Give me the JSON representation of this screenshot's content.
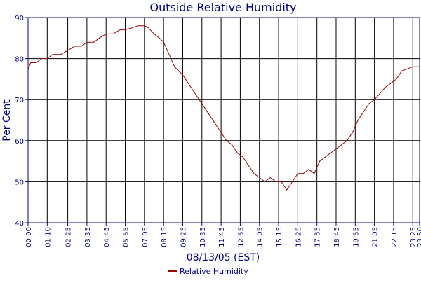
{
  "chart_data": {
    "type": "line",
    "title": "Outside Relative Humidity",
    "x_label": "08/13/05 (EST)",
    "y_label": "Per Cent",
    "x": [
      "00:00",
      "00:10",
      "00:30",
      "00:50",
      "01:10",
      "01:30",
      "02:00",
      "02:25",
      "02:50",
      "03:15",
      "03:35",
      "04:00",
      "04:20",
      "04:45",
      "05:10",
      "05:35",
      "05:55",
      "06:20",
      "06:40",
      "07:05",
      "07:20",
      "07:40",
      "08:00",
      "08:15",
      "08:35",
      "08:55",
      "09:25",
      "09:45",
      "10:05",
      "10:35",
      "10:55",
      "11:15",
      "11:45",
      "12:05",
      "12:25",
      "12:45",
      "13:05",
      "13:25",
      "13:45",
      "14:05",
      "14:25",
      "14:45",
      "15:05",
      "15:25",
      "15:45",
      "16:05",
      "16:25",
      "16:45",
      "17:05",
      "17:25",
      "17:45",
      "18:05",
      "18:25",
      "18:45",
      "19:05",
      "19:25",
      "19:45",
      "20:05",
      "20:25",
      "20:45",
      "21:05",
      "21:25",
      "21:45",
      "22:05",
      "22:25",
      "22:45",
      "23:05",
      "23:25",
      "23:50"
    ],
    "series": [
      {
        "name": "Relative Humidity",
        "color": "#990000",
        "values": [
          77.5,
          79,
          79,
          80,
          80,
          81,
          81,
          82,
          83,
          83,
          84,
          84,
          85,
          86,
          86,
          87,
          87,
          87.5,
          88,
          88,
          87.5,
          86,
          85,
          84,
          81,
          78,
          76,
          74,
          72,
          69,
          67,
          65,
          62,
          60,
          59,
          57,
          56,
          54,
          52,
          51,
          50,
          51,
          50,
          50,
          48,
          50,
          52,
          52,
          53,
          52,
          55,
          56,
          57,
          58,
          59,
          60,
          62,
          65,
          67,
          69,
          70,
          71.5,
          73,
          74,
          75,
          77,
          77.5,
          78,
          78
        ]
      }
    ],
    "xlim": [
      "00:00",
      "23:50"
    ],
    "xticks": [
      "00:00",
      "01:10",
      "02:25",
      "03:35",
      "04:45",
      "05:55",
      "07:05",
      "08:15",
      "09:25",
      "10:35",
      "11:45",
      "12:55",
      "14:05",
      "15:15",
      "16:25",
      "17:35",
      "18:45",
      "19:55",
      "21:05",
      "22:15",
      "23:25",
      "23:50"
    ],
    "ylim": [
      40,
      90
    ],
    "yticks": [
      40,
      50,
      60,
      70,
      80,
      90
    ],
    "grid": true,
    "legend": "bottom"
  }
}
